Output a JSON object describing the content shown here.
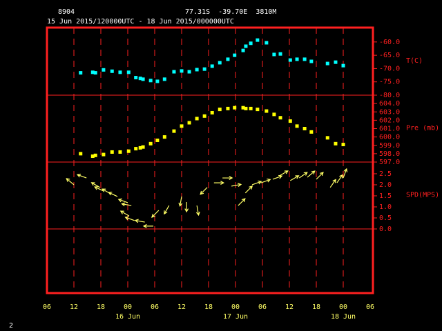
{
  "header": {
    "station": "8904",
    "location": "77.31S  -39.70E  3810M",
    "time_range": "15 Jun 2015/120000UTC - 18 Jun 2015/000000UTC"
  },
  "footer": {
    "page": "2"
  },
  "x_axis": {
    "xlim": [
      6,
      78
    ],
    "xticks": [
      {
        "value": 6,
        "label": "06"
      },
      {
        "value": 12,
        "label": "12"
      },
      {
        "value": 18,
        "label": "18"
      },
      {
        "value": 24,
        "label": "00"
      },
      {
        "value": 30,
        "label": "06"
      },
      {
        "value": 36,
        "label": "12"
      },
      {
        "value": 42,
        "label": "18"
      },
      {
        "value": 48,
        "label": "00"
      },
      {
        "value": 54,
        "label": "06"
      },
      {
        "value": 60,
        "label": "12"
      },
      {
        "value": 66,
        "label": "18"
      },
      {
        "value": 72,
        "label": "00"
      },
      {
        "value": 78,
        "label": "06"
      }
    ],
    "day_labels": [
      {
        "value": 24,
        "label": "16 Jun"
      },
      {
        "value": 48,
        "label": "17 Jun"
      },
      {
        "value": 72,
        "label": "18 Jun"
      }
    ],
    "grid": true
  },
  "chart_data": [
    {
      "type": "scatter",
      "ylabel": "T(C)",
      "color": "#00ffff",
      "x": [
        13.5,
        16.2,
        16.8,
        18.6,
        20.5,
        22.3,
        24.2,
        25.8,
        26.8,
        27.4,
        29.1,
        30.6,
        32.2,
        34.3,
        36.0,
        37.7,
        39.4,
        41.1,
        42.8,
        44.5,
        46.3,
        47.8,
        49.7,
        50.3,
        51.4,
        52.9,
        54.9,
        56.6,
        58.0,
        60.2,
        61.7,
        63.4,
        64.9,
        68.5,
        70.3,
        72.0
      ],
      "values": [
        -71.6,
        -71.4,
        -71.6,
        -70.5,
        -71.0,
        -71.4,
        -71.4,
        -73.4,
        -73.7,
        -74.0,
        -74.5,
        -74.8,
        -74.0,
        -71.2,
        -70.9,
        -71.2,
        -70.4,
        -70.2,
        -69.1,
        -67.8,
        -66.5,
        -65.0,
        -63.2,
        -61.6,
        -60.5,
        -59.3,
        -60.3,
        -64.7,
        -64.5,
        -66.8,
        -66.5,
        -66.5,
        -67.3,
        -68.1,
        -67.6,
        -68.9
      ],
      "ylim": [
        -80,
        -54.6
      ],
      "yticks": [
        {
          "value": -80,
          "label": "-80.0"
        },
        {
          "value": -75,
          "label": "-75.0"
        },
        {
          "value": -70,
          "label": "-70.0"
        },
        {
          "value": -65,
          "label": "-65.0"
        },
        {
          "value": -60,
          "label": "-60.0"
        }
      ]
    },
    {
      "type": "scatter",
      "ylabel": "Pre (mb)",
      "color": "#ffff00",
      "x": [
        13.5,
        16.2,
        16.8,
        18.6,
        20.5,
        22.3,
        24.2,
        25.8,
        26.8,
        27.4,
        29.1,
        30.6,
        32.2,
        34.3,
        36.0,
        37.7,
        39.4,
        41.1,
        42.8,
        44.5,
        46.3,
        47.8,
        49.7,
        50.3,
        51.4,
        52.9,
        54.9,
        56.6,
        58.0,
        60.2,
        61.7,
        63.4,
        64.9,
        68.5,
        70.3,
        72.0
      ],
      "values": [
        598.0,
        597.7,
        597.8,
        597.9,
        598.2,
        598.2,
        598.3,
        598.6,
        598.7,
        598.8,
        599.2,
        599.6,
        600.0,
        600.7,
        601.3,
        601.7,
        602.2,
        602.5,
        602.9,
        603.3,
        603.4,
        603.5,
        603.5,
        603.4,
        603.4,
        603.3,
        603.1,
        602.7,
        602.3,
        601.9,
        601.3,
        601.0,
        600.6,
        599.9,
        599.2,
        599.1
      ],
      "ylim": [
        597,
        605
      ],
      "yticks": [
        {
          "value": 597,
          "label": "597.0"
        },
        {
          "value": 598,
          "label": "598.0"
        },
        {
          "value": 599,
          "label": "599.0"
        },
        {
          "value": 600,
          "label": "600.0"
        },
        {
          "value": 601,
          "label": "601.0"
        },
        {
          "value": 602,
          "label": "602.0"
        },
        {
          "value": 603,
          "label": "603.0"
        },
        {
          "value": 604,
          "label": "604.0"
        }
      ]
    },
    {
      "type": "wind",
      "ylabel": "SPD(MPS)",
      "color": "#ffff66",
      "x": [
        12.0,
        14.8,
        17.8,
        18.6,
        20.2,
        21.7,
        24.0,
        24.8,
        24.3,
        25.5,
        27.8,
        29.7,
        30.9,
        33.2,
        36.0,
        37.1,
        39.4,
        41.7,
        43.2,
        45.1,
        47.1,
        48.6,
        50.2,
        51.7,
        53.7,
        56.3,
        57.8,
        60.2,
        62.2,
        64.0,
        66.0,
        69.1,
        70.6,
        72.0
      ],
      "values": [
        2.0,
        2.31,
        1.88,
        1.72,
        1.59,
        1.47,
        1.19,
        1.06,
        0.59,
        0.38,
        0.31,
        0.13,
        0.84,
        1.06,
        1.47,
        1.22,
        1.06,
        1.88,
        2.09,
        2.31,
        1.94,
        1.06,
        1.63,
        2.0,
        2.09,
        2.25,
        2.41,
        2.19,
        2.31,
        2.34,
        2.25,
        1.88,
        2.09,
        2.31
      ],
      "direction": [
        130,
        110,
        120,
        115,
        120,
        115,
        110,
        100,
        120,
        110,
        100,
        90,
        45,
        30,
        10,
        0,
        350,
        45,
        270,
        270,
        260,
        225,
        225,
        250,
        250,
        250,
        240,
        240,
        235,
        230,
        225,
        215,
        215,
        200
      ],
      "ylim": [
        0,
        3.03
      ],
      "yticks": [
        {
          "value": 0,
          "label": "0.0"
        },
        {
          "value": 0.5,
          "label": "0.5"
        },
        {
          "value": 1,
          "label": "1.0"
        },
        {
          "value": 1.5,
          "label": "1.5"
        },
        {
          "value": 2,
          "label": "2.0"
        },
        {
          "value": 2.5,
          "label": "2.5"
        }
      ]
    }
  ]
}
